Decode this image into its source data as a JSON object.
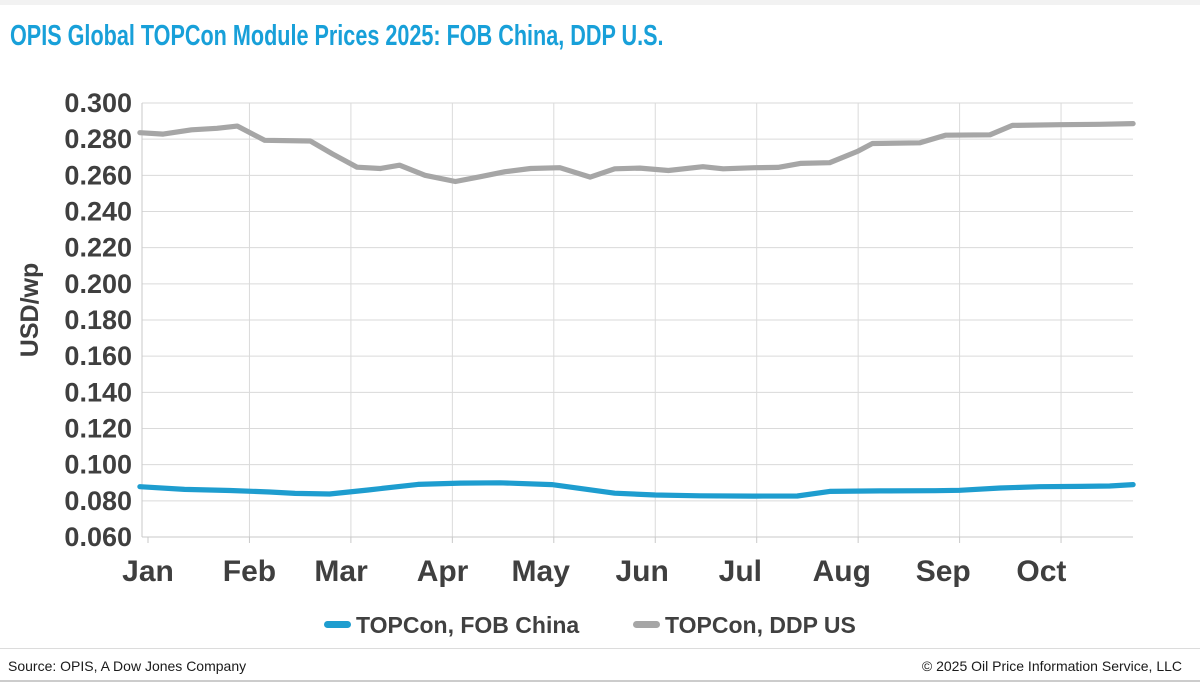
{
  "chart_data": {
    "type": "line",
    "title": "OPIS Global TOPCon Module Prices 2025: FOB China, DDP U.S.",
    "title_color": "#18A0D9",
    "ylabel": "USD/wp",
    "ylim": [
      0.06,
      0.3
    ],
    "ytick_step": 0.02,
    "y_tick_labels": [
      "0.060",
      "0.080",
      "0.100",
      "0.120",
      "0.140",
      "0.160",
      "0.180",
      "0.200",
      "0.220",
      "0.240",
      "0.260",
      "0.280",
      "0.300"
    ],
    "x_tick_labels": [
      "Jan",
      "Feb",
      "Mar",
      "Apr",
      "May",
      "Jun",
      "Jul",
      "Aug",
      "Sep",
      "Oct"
    ],
    "x_unit": "month position (0 = start of Jan 2025, fractional = weeks within month, data ends late Oct)",
    "grid": true,
    "legend_position": "bottom",
    "series": [
      {
        "name": "TOPCon, FOB China",
        "color": "#1E9DCF",
        "points": [
          [
            -0.08,
            0.0878
          ],
          [
            0.36,
            0.0863
          ],
          [
            0.81,
            0.0857
          ],
          [
            1.2,
            0.0849
          ],
          [
            1.45,
            0.0841
          ],
          [
            1.79,
            0.0838
          ],
          [
            2.17,
            0.086
          ],
          [
            2.66,
            0.0891
          ],
          [
            3.08,
            0.0898
          ],
          [
            3.47,
            0.09
          ],
          [
            3.98,
            0.089
          ],
          [
            4.34,
            0.0862
          ],
          [
            4.6,
            0.0842
          ],
          [
            5.0,
            0.0832
          ],
          [
            5.44,
            0.0828
          ],
          [
            5.98,
            0.0826
          ],
          [
            6.4,
            0.0827
          ],
          [
            6.72,
            0.0852
          ],
          [
            7.22,
            0.0855
          ],
          [
            7.76,
            0.0856
          ],
          [
            8.0,
            0.0858
          ],
          [
            8.4,
            0.0871
          ],
          [
            8.79,
            0.0878
          ],
          [
            9.19,
            0.088
          ],
          [
            9.48,
            0.0882
          ],
          [
            9.71,
            0.089
          ]
        ]
      },
      {
        "name": "TOPCon, DDP US",
        "color": "#A6A6A6",
        "points": [
          [
            -0.08,
            0.2836
          ],
          [
            0.15,
            0.2828
          ],
          [
            0.43,
            0.2852
          ],
          [
            0.68,
            0.286
          ],
          [
            0.88,
            0.2872
          ],
          [
            1.15,
            0.2794
          ],
          [
            1.6,
            0.279
          ],
          [
            1.82,
            0.2718
          ],
          [
            2.06,
            0.2645
          ],
          [
            2.29,
            0.2638
          ],
          [
            2.48,
            0.2656
          ],
          [
            2.73,
            0.26
          ],
          [
            3.03,
            0.2566
          ],
          [
            3.27,
            0.2592
          ],
          [
            3.52,
            0.262
          ],
          [
            3.77,
            0.2638
          ],
          [
            4.06,
            0.2642
          ],
          [
            4.36,
            0.259
          ],
          [
            4.6,
            0.2636
          ],
          [
            4.85,
            0.264
          ],
          [
            5.13,
            0.2627
          ],
          [
            5.47,
            0.2648
          ],
          [
            5.67,
            0.2636
          ],
          [
            5.98,
            0.2642
          ],
          [
            6.21,
            0.2644
          ],
          [
            6.43,
            0.2666
          ],
          [
            6.72,
            0.267
          ],
          [
            7.0,
            0.2734
          ],
          [
            7.14,
            0.2776
          ],
          [
            7.61,
            0.278
          ],
          [
            7.86,
            0.2822
          ],
          [
            8.3,
            0.2824
          ],
          [
            8.52,
            0.2876
          ],
          [
            8.99,
            0.288
          ],
          [
            9.38,
            0.2882
          ],
          [
            9.71,
            0.2886
          ]
        ]
      }
    ]
  },
  "footer": {
    "source": "Source: OPIS, A Dow Jones Company",
    "copyright": "© 2025 Oil Price Information Service, LLC"
  }
}
